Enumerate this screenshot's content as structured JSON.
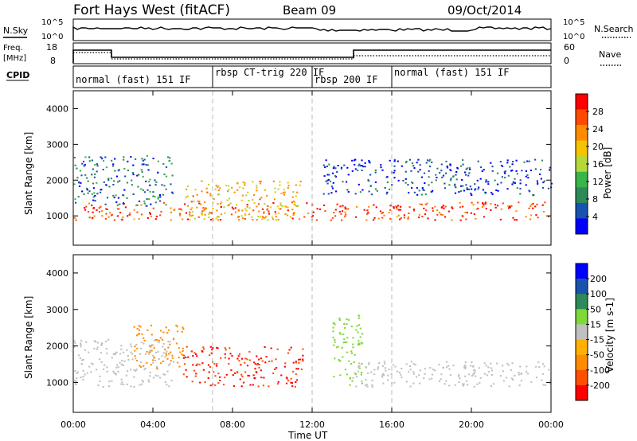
{
  "header": {
    "station": "Fort Hays West (fitACF)",
    "beam": "Beam 09",
    "date": "09/Oct/2014"
  },
  "top_panel": {
    "left_label": "N.Sky",
    "right_label": "N.Search",
    "left_ticks": [
      "10^5",
      "10^0"
    ],
    "right_ticks": [
      "10^5",
      "10^0"
    ]
  },
  "freq_panel": {
    "left_label": "Freq.",
    "left_unit": "[MHz]",
    "right_label": "Nave",
    "left_ticks": [
      "18",
      "8"
    ],
    "right_ticks": [
      "60",
      "0"
    ]
  },
  "cpid": {
    "label": "CPID",
    "segments": [
      {
        "label": "normal (fast) 151 IF",
        "start_h": 0
      },
      {
        "label": "rbsp CT-trig 220 IF",
        "start_h": 7
      },
      {
        "label": "rbsp 200 IF",
        "start_h": 12
      },
      {
        "label": "normal (fast) 151 IF",
        "start_h": 16
      }
    ]
  },
  "colors": {
    "power": [
      "#0000ff",
      "#1a52b0",
      "#2f8a5a",
      "#39b54a",
      "#b5d93a",
      "#f5c400",
      "#ff8c00",
      "#ff4a00",
      "#ff0000"
    ],
    "velocity": [
      "#ff0000",
      "#ff5000",
      "#ff8c00",
      "#ffb000",
      "#c0c0c0",
      "#7fd83a",
      "#2f8a5a",
      "#1a52b0",
      "#0000ff"
    ]
  },
  "power_scale": {
    "label": "Power [dB]",
    "ticks": [
      "28",
      "24",
      "20",
      "16",
      "12",
      "8",
      "4"
    ]
  },
  "velocity_scale": {
    "label": "Velocity [m s-1]",
    "ticks": [
      "200",
      "100",
      "50",
      "15",
      "-15",
      "-50",
      "-100",
      "-200"
    ]
  },
  "chart_data": [
    {
      "type": "heatmap",
      "panel": "power",
      "ylabel": "Slant Range [km]",
      "xlabel": "Time UT",
      "x_ticks": [
        "00:00",
        "04:00",
        "08:00",
        "12:00",
        "16:00",
        "20:00",
        "00:00"
      ],
      "y_ticks": [
        1000,
        2000,
        3000,
        4000
      ],
      "xlim_hours": [
        0,
        24
      ],
      "ylim_km": [
        180,
        4500
      ],
      "cpid_boundaries_h": [
        7,
        12,
        16
      ],
      "regions": [
        {
          "name": "near-range band",
          "t": [
            0,
            24
          ],
          "range_km": [
            900,
            1400
          ],
          "power_db": 26
        },
        {
          "name": "rising arc",
          "t": [
            0,
            5
          ],
          "range_km": [
            1300,
            2700
          ],
          "power_db": 8
        },
        {
          "name": "rbsp patch",
          "t": [
            5.5,
            11.5
          ],
          "range_km": [
            900,
            2000
          ],
          "power_db": 20
        },
        {
          "name": "post-noon tail",
          "t": [
            12.5,
            24
          ],
          "range_km": [
            1600,
            2600
          ],
          "power_db": 6
        }
      ]
    },
    {
      "type": "heatmap",
      "panel": "velocity",
      "ylabel": "Slant Range [km]",
      "xlabel": "Time UT",
      "x_ticks": [
        "00:00",
        "04:00",
        "08:00",
        "12:00",
        "16:00",
        "20:00",
        "00:00"
      ],
      "y_ticks": [
        1000,
        2000,
        3000,
        4000
      ],
      "xlim_hours": [
        0,
        24
      ],
      "ylim_km": [
        180,
        4500
      ],
      "cpid_boundaries_h": [
        7,
        12,
        16
      ],
      "regions": [
        {
          "name": "ground scatter band",
          "t": [
            0,
            5
          ],
          "range_km": [
            900,
            2200
          ],
          "velocity_ms": 0
        },
        {
          "name": "rising arc",
          "t": [
            3,
            5.5
          ],
          "range_km": [
            1400,
            2600
          ],
          "velocity_ms": -60
        },
        {
          "name": "strong negative patch",
          "t": [
            5.5,
            11.5
          ],
          "range_km": [
            900,
            2000
          ],
          "velocity_ms": -200
        },
        {
          "name": "positive streak",
          "t": [
            13,
            14.5
          ],
          "range_km": [
            900,
            2900
          ],
          "velocity_ms": 40
        },
        {
          "name": "late ground scatter",
          "t": [
            14,
            24
          ],
          "range_km": [
            900,
            1600
          ],
          "velocity_ms": 0
        }
      ]
    }
  ]
}
